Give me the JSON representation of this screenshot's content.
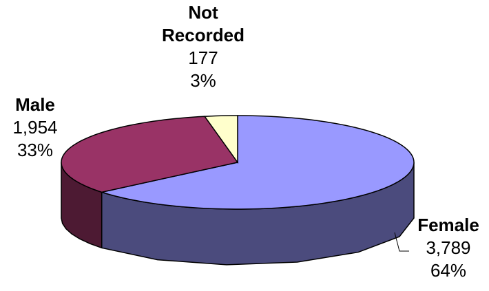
{
  "chart_data": {
    "type": "pie",
    "style": "3d",
    "slices": [
      {
        "label": "Female",
        "value": 3789,
        "value_text": "3,789",
        "percent_text": "64%",
        "color": "#9999ff",
        "side_color": "#4b4b7d"
      },
      {
        "label": "Male",
        "value": 1954,
        "value_text": "1,954",
        "percent_text": "33%",
        "color": "#993366",
        "side_color": "#4d1a33"
      },
      {
        "label": "Not Recorded",
        "label_lines": [
          "Not",
          "Recorded"
        ],
        "value": 177,
        "value_text": "177",
        "percent_text": "3%",
        "color": "#ffffcc",
        "side_color": "#808066"
      }
    ],
    "start_angle_deg": 90,
    "direction": "clockwise",
    "legend": "none"
  }
}
